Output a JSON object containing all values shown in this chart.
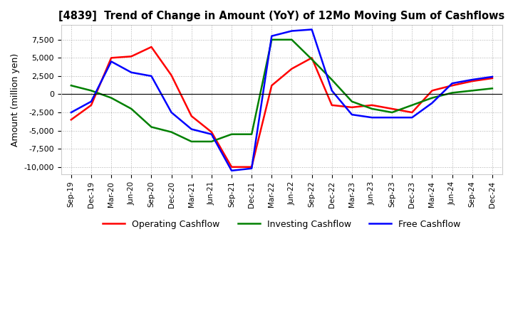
{
  "title": "[4839]  Trend of Change in Amount (YoY) of 12Mo Moving Sum of Cashflows",
  "ylabel": "Amount (million yen)",
  "ylim": [
    -11000,
    9500
  ],
  "yticks": [
    -10000,
    -7500,
    -5000,
    -2500,
    0,
    2500,
    5000,
    7500
  ],
  "x_labels": [
    "Sep-19",
    "Dec-19",
    "Mar-20",
    "Jun-20",
    "Sep-20",
    "Dec-20",
    "Mar-21",
    "Jun-21",
    "Sep-21",
    "Dec-21",
    "Mar-22",
    "Jun-22",
    "Sep-22",
    "Dec-22",
    "Mar-23",
    "Jun-23",
    "Sep-23",
    "Dec-23",
    "Mar-24",
    "Jun-24",
    "Sep-24",
    "Dec-24"
  ],
  "operating": [
    -3500,
    -1500,
    5000,
    5200,
    6500,
    2600,
    -3000,
    -5200,
    -10000,
    -10000,
    1200,
    3500,
    5000,
    -1500,
    -1800,
    -1500,
    -2000,
    -2500,
    500,
    1200,
    1800,
    2200
  ],
  "investing": [
    1200,
    500,
    -500,
    -2000,
    -4500,
    -5200,
    -6500,
    -6500,
    -5500,
    -5500,
    7500,
    7500,
    4800,
    2000,
    -1000,
    -2000,
    -2500,
    -1500,
    -500,
    200,
    500,
    800
  ],
  "free": [
    -2500,
    -1000,
    4500,
    3000,
    2500,
    -2500,
    -4800,
    -5500,
    -10500,
    -10200,
    8000,
    8700,
    8900,
    500,
    -2800,
    -3200,
    -3200,
    -3200,
    -1200,
    1500,
    2000,
    2400
  ],
  "op_color": "#ff0000",
  "inv_color": "#008000",
  "free_color": "#0000ff",
  "legend_labels": [
    "Operating Cashflow",
    "Investing Cashflow",
    "Free Cashflow"
  ],
  "background_color": "#ffffff",
  "grid_color": "#b0b0b0"
}
